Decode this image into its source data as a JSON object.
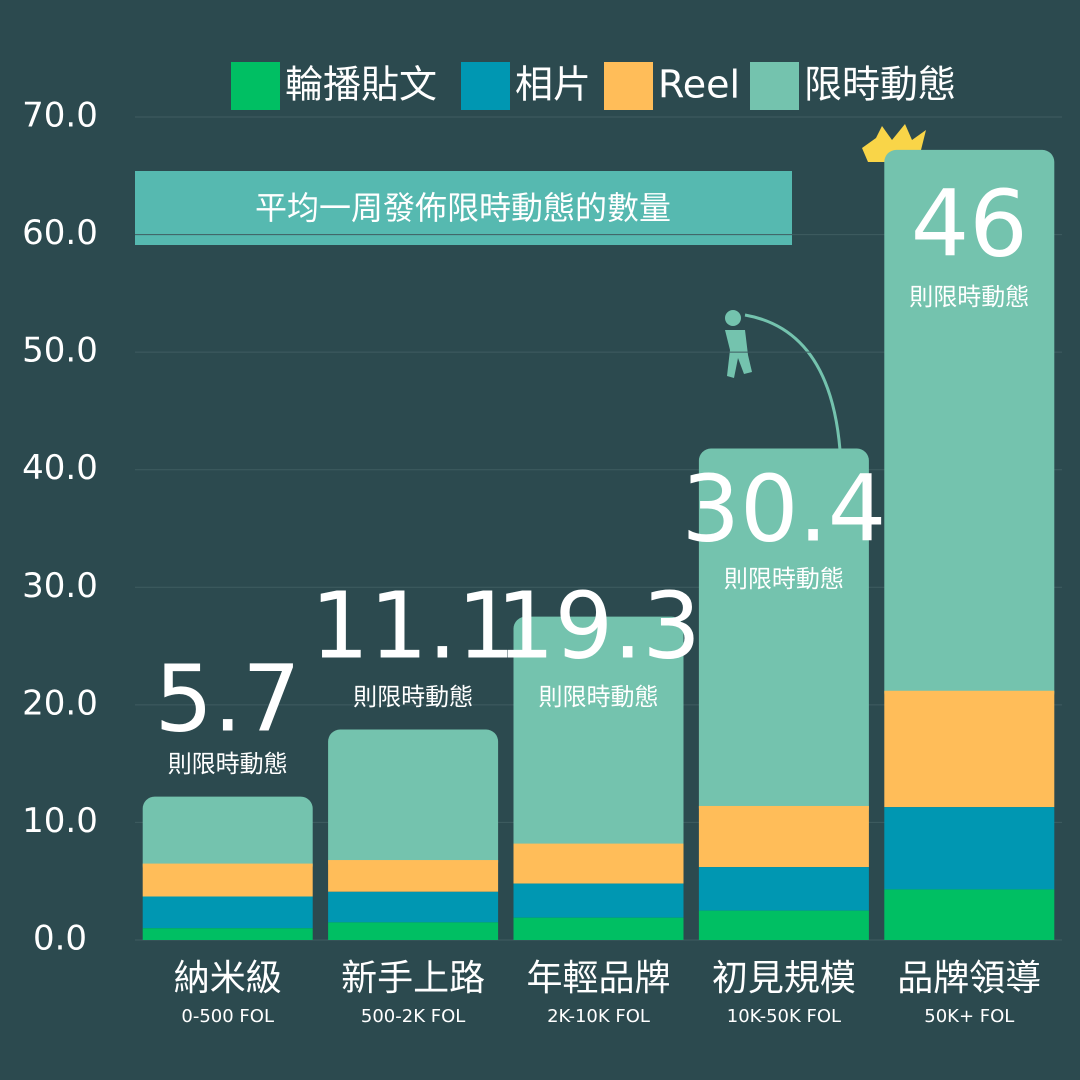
{
  "chart_data": {
    "type": "stacked_bar",
    "categories": [
      "納米級",
      "新手上路",
      "年輕品牌",
      "初見規模",
      "品牌領導"
    ],
    "category_sublabels": [
      "0-500 FOL",
      "500-2K FOL",
      "2K-10K FOL",
      "10K-50K FOL",
      "50K+ FOL"
    ],
    "series": [
      {
        "name": "輪播貼文",
        "color": "#00bf63",
        "values": [
          1.0,
          1.5,
          1.9,
          2.5,
          4.3
        ]
      },
      {
        "name": "相片",
        "color": "#0097b2",
        "values": [
          2.7,
          2.6,
          2.9,
          3.7,
          7.0
        ]
      },
      {
        "name": "Reel",
        "color": "#ffbd59",
        "values": [
          2.8,
          2.7,
          3.4,
          5.2,
          9.9
        ]
      },
      {
        "name": "限時動態",
        "color": "#74c3ae",
        "values": [
          5.7,
          11.1,
          19.3,
          30.4,
          46
        ]
      }
    ],
    "labeled_series": 3,
    "value_suffix": "則限時動態",
    "annotation": "平均一周發佈限時動態的數量",
    "ylim": [
      0,
      70
    ],
    "yticks": [
      {
        "value": 0,
        "label": "0.0"
      },
      {
        "value": 10,
        "label": "10.0"
      },
      {
        "value": 20,
        "label": "20.0"
      },
      {
        "value": 30,
        "label": "30.0"
      },
      {
        "value": 40,
        "label": "40.0"
      },
      {
        "value": 50,
        "label": "50.0"
      },
      {
        "value": 60,
        "label": "60.0"
      },
      {
        "value": 70,
        "label": "70.0"
      }
    ],
    "grid": true
  }
}
